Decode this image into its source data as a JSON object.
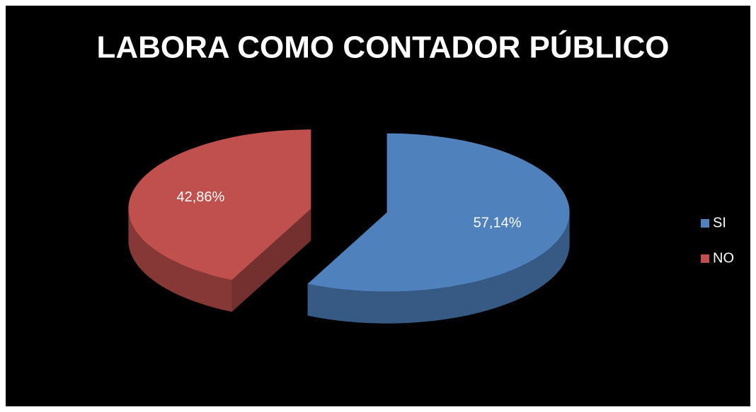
{
  "chart_data": {
    "type": "pie",
    "title": "LABORA COMO CONTADOR PÚBLICO",
    "categories": [
      "SI",
      "NO"
    ],
    "values": [
      57.14,
      42.86
    ],
    "value_labels": [
      "57,14%",
      "42,86%"
    ],
    "colors": [
      "#4f81bd",
      "#c0504d"
    ],
    "legend": "right"
  }
}
